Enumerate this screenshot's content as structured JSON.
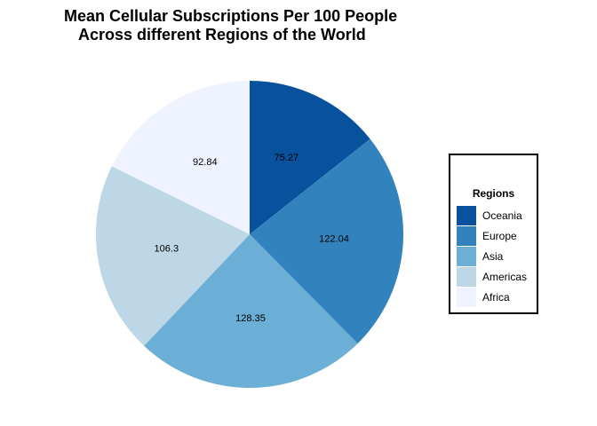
{
  "chart_data": {
    "type": "pie",
    "title_lines": [
      "Mean Cellular Subscriptions Per 100 People",
      "Across different Regions of the World"
    ],
    "legend_title": "Regions",
    "legend_position": "right",
    "grid": false,
    "slices": [
      {
        "label": "Oceania",
        "value": 75.27,
        "value_label": "75.27",
        "color": "#08519C"
      },
      {
        "label": "Europe",
        "value": 122.04,
        "value_label": "122.04",
        "color": "#3182BD"
      },
      {
        "label": "Asia",
        "value": 128.35,
        "value_label": "128.35",
        "color": "#6BAED6"
      },
      {
        "label": "Americas",
        "value": 106.3,
        "value_label": "106.3",
        "color": "#BDD7E7"
      },
      {
        "label": "Africa",
        "value": 92.84,
        "value_label": "92.84",
        "color": "#EFF3FF"
      }
    ]
  }
}
